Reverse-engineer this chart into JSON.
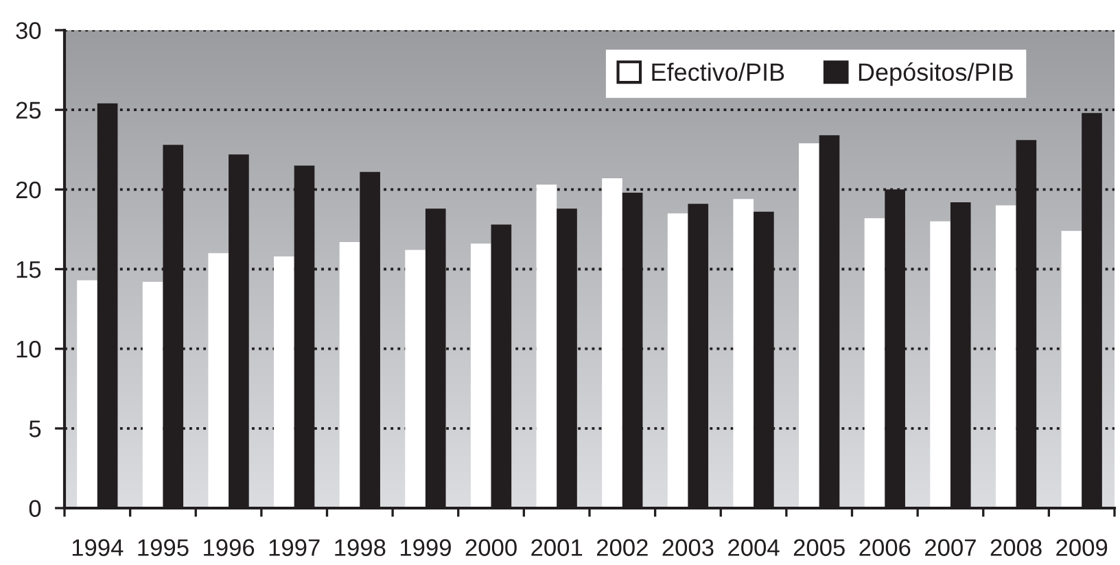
{
  "chart_data": {
    "type": "bar",
    "categories": [
      "1994",
      "1995",
      "1996",
      "1997",
      "1998",
      "1999",
      "2000",
      "2001",
      "2002",
      "2003",
      "2004",
      "2005",
      "2006",
      "2007",
      "2008",
      "2009"
    ],
    "series": [
      {
        "name": "Efectivo/PIB",
        "color": "#ffffff",
        "values": [
          14.3,
          14.2,
          16.0,
          15.8,
          16.7,
          16.2,
          16.6,
          20.3,
          20.7,
          18.5,
          19.4,
          22.9,
          18.2,
          18.0,
          19.0,
          17.4
        ]
      },
      {
        "name": "Depósitos/PIB",
        "color": "#221e1f",
        "values": [
          25.4,
          22.8,
          22.2,
          21.5,
          21.1,
          18.8,
          17.8,
          18.8,
          19.8,
          19.1,
          18.6,
          23.4,
          20.0,
          19.2,
          23.1,
          24.8
        ]
      }
    ],
    "ylim": [
      0,
      30
    ],
    "yticks": [
      0,
      5,
      10,
      15,
      20,
      25,
      30
    ],
    "grid": "y",
    "legend": "top right"
  }
}
